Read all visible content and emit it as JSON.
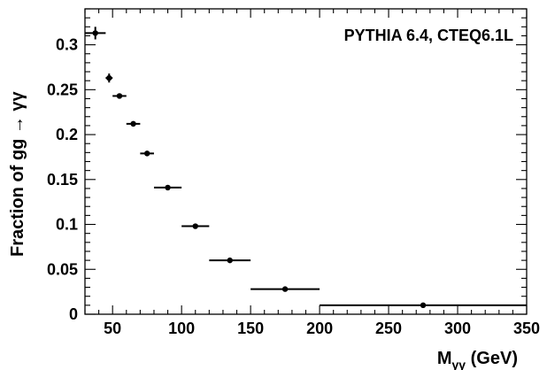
{
  "chart_data": {
    "type": "scatter",
    "annotation": "PYTHIA 6.4, CTEQ6.1L",
    "xlabel": {
      "main": "M",
      "sub": "γγ",
      "unit": " (GeV)"
    },
    "ylabel": "Fraction of gg → γγ",
    "xlim": [
      30,
      350
    ],
    "ylim": [
      0,
      0.34
    ],
    "x_ticks": [
      50,
      100,
      150,
      200,
      250,
      300,
      350
    ],
    "y_ticks": [
      0,
      0.05,
      0.1,
      0.15,
      0.2,
      0.25,
      0.3
    ],
    "x_tick_labels": [
      "50",
      "100",
      "150",
      "200",
      "250",
      "300",
      "350"
    ],
    "y_tick_labels": [
      "0",
      "0.05",
      "0.1",
      "0.15",
      "0.2",
      "0.25",
      "0.3"
    ],
    "grid": false,
    "marker_color": "#000000",
    "points": [
      {
        "x": 37.5,
        "xlow": 30,
        "xhigh": 45,
        "y": 0.313,
        "yerr": 0.007
      },
      {
        "x": 47.5,
        "xlow": 45,
        "xhigh": 50,
        "y": 0.263,
        "yerr": 0.005
      },
      {
        "x": 55,
        "xlow": 50,
        "xhigh": 60,
        "y": 0.243,
        "yerr": 0.002
      },
      {
        "x": 65,
        "xlow": 60,
        "xhigh": 70,
        "y": 0.212,
        "yerr": 0.002
      },
      {
        "x": 75,
        "xlow": 70,
        "xhigh": 80,
        "y": 0.179,
        "yerr": 0.002
      },
      {
        "x": 90,
        "xlow": 80,
        "xhigh": 100,
        "y": 0.141,
        "yerr": 0.002
      },
      {
        "x": 110,
        "xlow": 100,
        "xhigh": 120,
        "y": 0.098,
        "yerr": 0.002
      },
      {
        "x": 135,
        "xlow": 120,
        "xhigh": 150,
        "y": 0.06,
        "yerr": 0.002
      },
      {
        "x": 175,
        "xlow": 150,
        "xhigh": 200,
        "y": 0.028,
        "yerr": 0.001
      },
      {
        "x": 275,
        "xlow": 200,
        "xhigh": 350,
        "y": 0.01,
        "yerr": 0.001
      }
    ]
  }
}
